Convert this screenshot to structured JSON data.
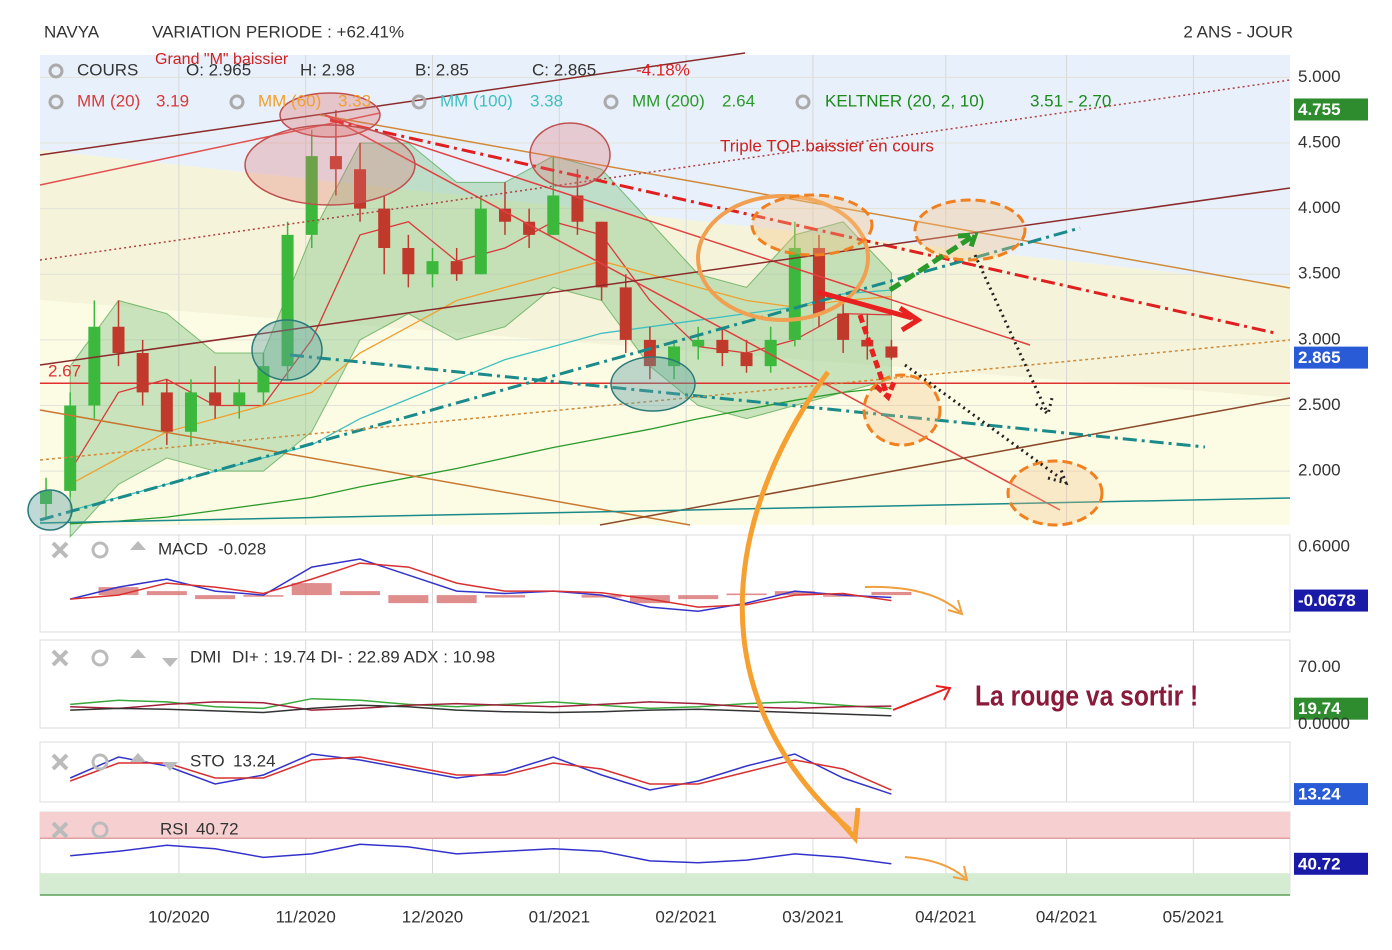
{
  "header": {
    "symbol": "NAVYA",
    "variation": "VARIATION PERIODE : +62.41%",
    "period": "2 ANS - JOUR"
  },
  "quote": {
    "label": "COURS",
    "open": "O: 2.965",
    "high": "H: 2.98",
    "low": "B: 2.85",
    "close": "C: 2.865",
    "change": "-4.18%"
  },
  "annotations": [
    "Grand \"M\" baissier",
    "Triple TOP baissier en cours",
    "La rouge va sortir !"
  ],
  "chart_data": [
    {
      "type": "candlestick",
      "x": [
        1,
        5,
        9,
        13,
        17,
        21,
        25,
        29,
        33,
        37,
        41,
        45,
        49,
        53,
        57,
        61,
        65,
        69,
        73,
        77,
        81,
        85,
        89,
        93,
        97,
        101,
        105,
        109,
        113,
        117,
        121,
        125,
        129,
        133,
        137,
        141
      ],
      "open": [
        1.75,
        1.85,
        2.5,
        3.1,
        2.9,
        2.6,
        2.3,
        2.6,
        2.5,
        2.6,
        2.8,
        3.8,
        4.4,
        4.3,
        4.0,
        3.7,
        3.5,
        3.6,
        3.5,
        4.0,
        3.9,
        3.8,
        4.1,
        3.9,
        3.4,
        3.0,
        2.8,
        2.95,
        3.0,
        2.9,
        2.8,
        3.0,
        3.7,
        3.2,
        3.0,
        2.95
      ],
      "high": [
        1.95,
        2.6,
        3.3,
        3.3,
        3.0,
        2.7,
        2.7,
        2.8,
        2.7,
        2.9,
        3.9,
        4.6,
        4.75,
        4.5,
        4.1,
        3.8,
        3.7,
        3.7,
        4.1,
        4.2,
        4.0,
        4.4,
        4.3,
        3.9,
        3.5,
        3.1,
        3.0,
        3.1,
        3.1,
        3.0,
        3.1,
        3.9,
        3.8,
        3.3,
        3.2,
        3.0
      ],
      "low": [
        1.65,
        1.8,
        2.4,
        2.8,
        2.5,
        2.2,
        2.2,
        2.4,
        2.4,
        2.5,
        2.7,
        3.7,
        4.1,
        3.9,
        3.5,
        3.4,
        3.4,
        3.45,
        3.5,
        3.8,
        3.7,
        3.8,
        3.8,
        3.3,
        2.9,
        2.7,
        2.7,
        2.85,
        2.8,
        2.75,
        2.75,
        2.95,
        3.1,
        2.9,
        2.85,
        2.85
      ],
      "close": [
        1.85,
        2.5,
        3.1,
        2.9,
        2.6,
        2.3,
        2.6,
        2.5,
        2.6,
        2.8,
        3.8,
        4.4,
        4.3,
        4.0,
        3.7,
        3.5,
        3.6,
        3.5,
        4.0,
        3.9,
        3.8,
        4.1,
        3.9,
        3.4,
        3.0,
        2.8,
        2.95,
        3.0,
        2.9,
        2.8,
        3.0,
        3.7,
        3.2,
        3.0,
        2.95,
        2.865
      ],
      "up_color": "#3cb83c",
      "down_color": "#c0392b",
      "overlays": [
        {
          "name": "MM (20)",
          "color": "#d83a3a",
          "x": [
            5,
            13,
            21,
            29,
            37,
            45,
            53,
            61,
            69,
            77,
            85,
            93,
            101,
            109,
            117,
            125,
            133,
            141
          ],
          "values": [
            2.0,
            2.6,
            2.7,
            2.5,
            2.5,
            3.0,
            3.8,
            3.9,
            3.6,
            3.7,
            3.9,
            3.8,
            3.3,
            2.95,
            2.9,
            3.0,
            3.2,
            3.19
          ]
        },
        {
          "name": "MM (60)",
          "color": "#f0a030",
          "x": [
            5,
            13,
            21,
            29,
            37,
            45,
            53,
            61,
            69,
            77,
            85,
            93,
            101,
            109,
            117,
            125,
            133,
            141
          ],
          "values": [
            1.9,
            2.1,
            2.3,
            2.4,
            2.5,
            2.6,
            2.9,
            3.1,
            3.3,
            3.4,
            3.5,
            3.6,
            3.5,
            3.4,
            3.3,
            3.25,
            3.3,
            3.33
          ]
        },
        {
          "name": "MM (100)",
          "color": "#40c0c0",
          "x": [
            5,
            13,
            21,
            29,
            37,
            45,
            53,
            61,
            69,
            77,
            85,
            93,
            101,
            109,
            117,
            125,
            133,
            141
          ],
          "values": [
            1.7,
            1.8,
            1.9,
            2.0,
            2.1,
            2.2,
            2.4,
            2.55,
            2.7,
            2.85,
            2.95,
            3.05,
            3.1,
            3.15,
            3.2,
            3.25,
            3.35,
            3.38
          ]
        },
        {
          "name": "MM (200)",
          "color": "#2a9a2a",
          "x": [
            5,
            13,
            21,
            29,
            37,
            45,
            53,
            61,
            69,
            77,
            85,
            93,
            101,
            109,
            117,
            125,
            133,
            141
          ],
          "values": [
            1.6,
            1.62,
            1.65,
            1.7,
            1.75,
            1.8,
            1.88,
            1.95,
            2.02,
            2.1,
            2.18,
            2.25,
            2.32,
            2.4,
            2.47,
            2.54,
            2.6,
            2.64
          ]
        }
      ],
      "keltner": {
        "name": "KELTNER (20, 2, 10)",
        "label": "3.51 - 2.70",
        "color": "#1a8a1a",
        "x": [
          5,
          13,
          21,
          29,
          37,
          45,
          53,
          61,
          69,
          77,
          85,
          93,
          101,
          109,
          117,
          125,
          133,
          141
        ],
        "upper": [
          2.8,
          3.3,
          3.2,
          2.9,
          2.9,
          3.8,
          4.5,
          4.5,
          4.2,
          4.2,
          4.4,
          4.3,
          3.9,
          3.5,
          3.4,
          3.8,
          3.9,
          3.51
        ],
        "lower": [
          1.5,
          1.9,
          2.1,
          2.0,
          2.0,
          2.3,
          3.0,
          3.2,
          3.0,
          3.1,
          3.4,
          3.3,
          2.8,
          2.5,
          2.4,
          2.5,
          2.6,
          2.7
        ]
      },
      "levels": [
        {
          "value": 2.67,
          "color": "#e03030"
        }
      ],
      "tags": [
        {
          "value": 4.755,
          "color": "#2e8b2e"
        },
        {
          "value": 2.865,
          "color": "#2a5bd7"
        }
      ],
      "xlim": [
        0,
        207
      ],
      "xticks": [
        {
          "value": 23,
          "label": "10/2020"
        },
        {
          "value": 44,
          "label": "11/2020"
        },
        {
          "value": 65,
          "label": "12/2020"
        },
        {
          "value": 86,
          "label": "01/2021"
        },
        {
          "value": 107,
          "label": "02/2021"
        },
        {
          "value": 128,
          "label": "03/2021"
        },
        {
          "value": 150,
          "label": "04/2021"
        },
        {
          "value": 170,
          "label": "04/2021"
        },
        {
          "value": 191,
          "label": "05/2021"
        }
      ],
      "ylim": [
        1.59,
        5.17
      ],
      "yticks": [
        {
          "value": 2,
          "label": "2.000"
        },
        {
          "value": 2.5,
          "label": "2.500"
        },
        {
          "value": 3,
          "label": "3.000"
        },
        {
          "value": 3.5,
          "label": "3.500"
        },
        {
          "value": 4,
          "label": "4.000"
        },
        {
          "value": 4.5,
          "label": "4.500"
        },
        {
          "value": 5,
          "label": "5.000"
        }
      ],
      "grid": true
    },
    {
      "type": "line",
      "title": "MACD",
      "xlim": [
        0,
        207
      ],
      "ylim": [
        -0.46,
        0.75
      ],
      "x": [
        5,
        13,
        21,
        29,
        37,
        45,
        53,
        61,
        69,
        77,
        85,
        93,
        101,
        109,
        117,
        125,
        133,
        141
      ],
      "histogram": {
        "color": "#d87070",
        "values": [
          0,
          0.1,
          0.05,
          -0.05,
          -0.02,
          0.15,
          0.05,
          -0.1,
          -0.1,
          -0.03,
          0,
          -0.03,
          -0.1,
          -0.05,
          0.02,
          0.05,
          -0.02,
          0.04
        ]
      },
      "series": [
        {
          "color": "#3333cc",
          "values": [
            -0.05,
            0.1,
            0.2,
            0.05,
            0.0,
            0.35,
            0.45,
            0.25,
            0.05,
            0.02,
            0.05,
            0.0,
            -0.15,
            -0.2,
            -0.1,
            0.05,
            0.0,
            -0.028
          ]
        },
        {
          "color": "#d83030",
          "values": [
            -0.05,
            0.0,
            0.15,
            0.1,
            0.02,
            0.2,
            0.4,
            0.35,
            0.15,
            0.05,
            0.05,
            0.03,
            -0.05,
            -0.15,
            -0.12,
            0.0,
            0.02,
            -0.0678
          ]
        }
      ],
      "tag_color": "#1a1aa8",
      "yticks": [
        {
          "value": 0.6,
          "label": "0.6000"
        }
      ]
    },
    {
      "type": "line",
      "title": "DMI",
      "subtitle": "DI+ : 19.74 DI- : 22.89 ADX : 10.98",
      "xlim": [
        0,
        207
      ],
      "ylim": [
        -4,
        104
      ],
      "x": [
        5,
        13,
        21,
        29,
        37,
        45,
        53,
        61,
        69,
        77,
        85,
        93,
        101,
        109,
        117,
        125,
        133,
        141
      ],
      "series": [
        {
          "color": "#3aa83a",
          "values": [
            25,
            30,
            28,
            22,
            20,
            32,
            30,
            25,
            22,
            25,
            28,
            24,
            20,
            22,
            26,
            28,
            24,
            19.74
          ]
        },
        {
          "color": "#a0203a",
          "values": [
            22,
            20,
            25,
            28,
            27,
            18,
            20,
            24,
            26,
            24,
            22,
            25,
            28,
            26,
            22,
            20,
            22,
            22.89
          ]
        },
        {
          "color": "#333333",
          "values": [
            18,
            20,
            19,
            17,
            15,
            20,
            24,
            22,
            18,
            16,
            15,
            16,
            18,
            19,
            17,
            15,
            13,
            10.98
          ]
        }
      ],
      "tag_color": "#2e8b2e",
      "yticks": [
        {
          "value": 70,
          "label": "70.00"
        },
        {
          "value": 0,
          "label": "0.0000"
        }
      ]
    },
    {
      "type": "line",
      "title": "STO",
      "xlim": [
        0,
        207
      ],
      "ylim": [
        0,
        100
      ],
      "x": [
        5,
        13,
        21,
        29,
        37,
        45,
        53,
        61,
        69,
        77,
        85,
        93,
        101,
        109,
        117,
        125,
        133,
        141
      ],
      "series": [
        {
          "color": "#3333cc",
          "values": [
            40,
            75,
            60,
            30,
            45,
            80,
            70,
            55,
            40,
            50,
            75,
            45,
            20,
            35,
            60,
            80,
            40,
            13.24
          ]
        },
        {
          "color": "#d83030",
          "values": [
            35,
            65,
            65,
            40,
            40,
            70,
            75,
            60,
            45,
            45,
            65,
            55,
            30,
            30,
            50,
            70,
            55,
            20
          ]
        }
      ],
      "tag_color": "#2a5bd7",
      "yticks": []
    },
    {
      "type": "line",
      "title": "RSI",
      "xlim": [
        0,
        207
      ],
      "ylim": [
        5,
        100
      ],
      "x": [
        5,
        13,
        21,
        29,
        37,
        45,
        53,
        61,
        69,
        77,
        85,
        93,
        101,
        109,
        117,
        125,
        133,
        141
      ],
      "zones": [
        {
          "from": 70,
          "to": 100,
          "color": "#f6d0d0"
        },
        {
          "from": 5,
          "to": 30,
          "color": "#d6ecd2"
        }
      ],
      "series": [
        {
          "color": "#3333cc",
          "values": [
            50,
            55,
            62,
            58,
            48,
            52,
            63,
            60,
            52,
            55,
            58,
            55,
            44,
            42,
            45,
            52,
            48,
            40.72
          ]
        }
      ],
      "tag_color": "#1a1aa8",
      "yticks": []
    }
  ]
}
